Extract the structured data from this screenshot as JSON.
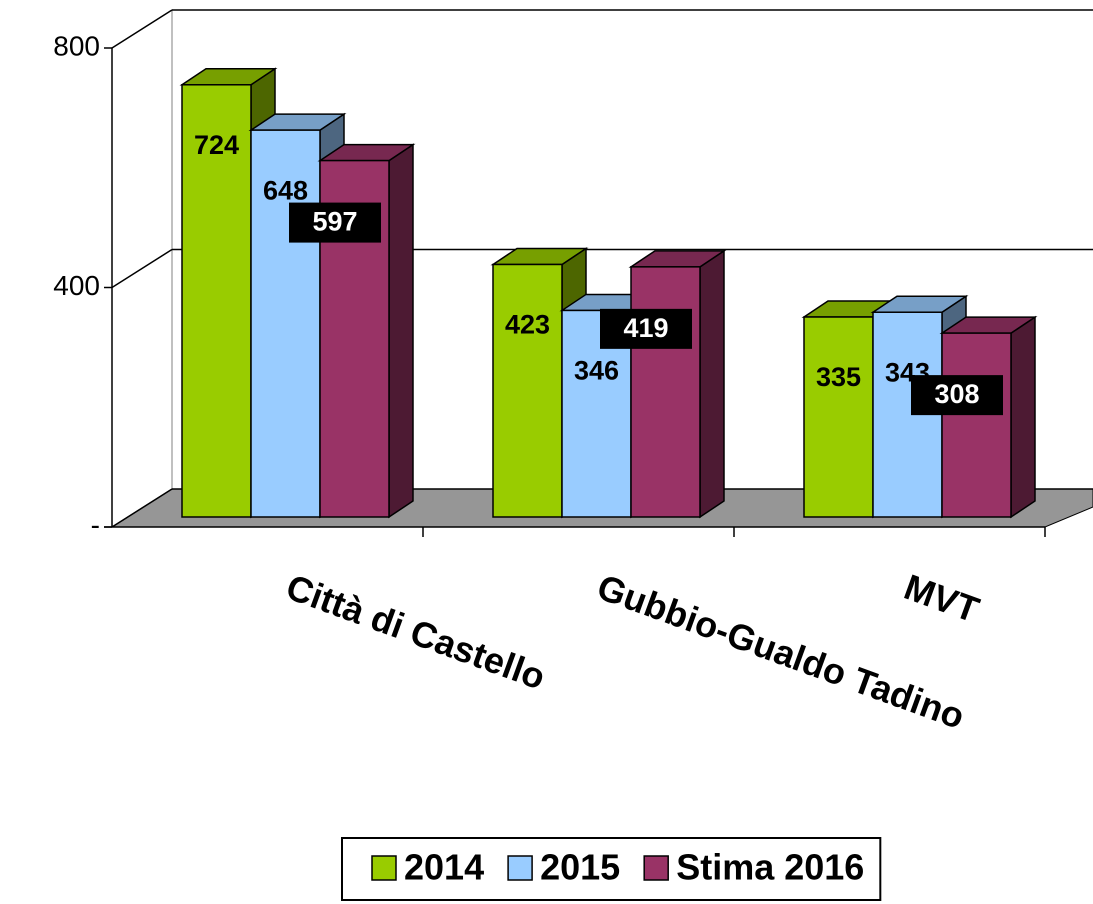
{
  "chart_data": {
    "type": "bar3d",
    "categories": [
      "Città di Castello",
      "Gubbio-Gualdo Tadino",
      "MVT"
    ],
    "series": [
      {
        "name": "2014",
        "color": "#99cc00",
        "values": [
          724,
          423,
          335
        ]
      },
      {
        "name": "2015",
        "color": "#99ccff",
        "values": [
          648,
          346,
          343
        ]
      },
      {
        "name": "Stima 2016",
        "color": "#993366",
        "values": [
          597,
          419,
          308
        ]
      }
    ],
    "ylim": [
      0,
      800
    ],
    "yticks": [
      {
        "value": 0,
        "label": "-"
      },
      400,
      800
    ],
    "grid": true,
    "legend": "bottom"
  }
}
